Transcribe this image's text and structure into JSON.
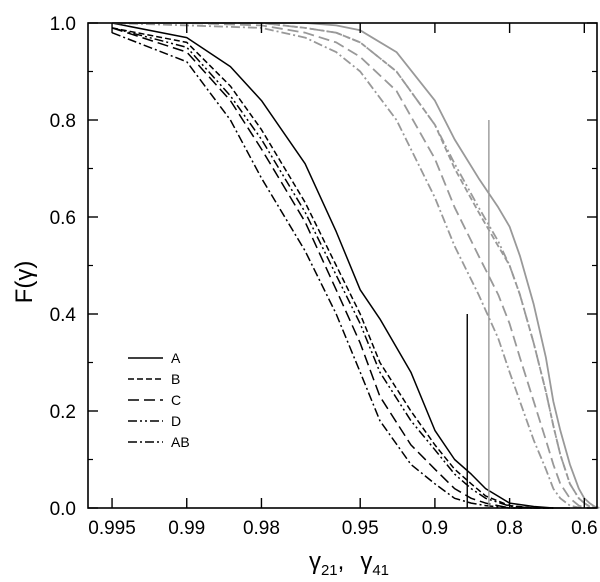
{
  "chart_data": {
    "type": "line",
    "title": "",
    "xlabel": {
      "sym1": "γ",
      "sub1": "21",
      "sep": ",",
      "sym2": "γ",
      "sub2": "41"
    },
    "ylabel": {
      "pre": "F(",
      "sym": "γ",
      "post": ")"
    },
    "x_scale": "nonlinear (-log(1-γ))",
    "x_ticks": [
      "0.995",
      "0.99",
      "0.98",
      "0.95",
      "0.9",
      "0.8",
      "0.6"
    ],
    "x_tick_values": [
      0.995,
      0.99,
      0.98,
      0.95,
      0.9,
      0.8,
      0.6
    ],
    "y_ticks": [
      "0.0",
      "0.2",
      "0.4",
      "0.6",
      "0.8",
      "1.0"
    ],
    "ylim": [
      0.0,
      1.0
    ],
    "grid": false,
    "legend": {
      "location": "lower-left",
      "entries": [
        "A",
        "B",
        "C",
        "D",
        "AB"
      ]
    },
    "colors": {
      "gamma21": "#000000",
      "gamma41": "#999999"
    },
    "series": [
      {
        "name": "A",
        "group": "gamma21",
        "dash": "solid",
        "x": [
          0.995,
          0.99,
          0.985,
          0.98,
          0.97,
          0.96,
          0.95,
          0.94,
          0.92,
          0.9,
          0.88,
          0.86,
          0.84,
          0.8,
          0.75,
          0.7,
          0.65
        ],
        "y": [
          1.0,
          0.97,
          0.91,
          0.84,
          0.71,
          0.57,
          0.45,
          0.39,
          0.28,
          0.16,
          0.1,
          0.07,
          0.04,
          0.01,
          0.003,
          0.0,
          0.0
        ]
      },
      {
        "name": "B",
        "group": "gamma21",
        "dash": "short-dash",
        "x": [
          0.995,
          0.99,
          0.985,
          0.98,
          0.97,
          0.96,
          0.95,
          0.94,
          0.92,
          0.9,
          0.88,
          0.86,
          0.84,
          0.8,
          0.75,
          0.7
        ],
        "y": [
          0.99,
          0.96,
          0.87,
          0.78,
          0.63,
          0.5,
          0.4,
          0.3,
          0.2,
          0.13,
          0.08,
          0.05,
          0.025,
          0.005,
          0.0,
          0.0
        ]
      },
      {
        "name": "C",
        "group": "gamma21",
        "dash": "long-dash",
        "x": [
          0.995,
          0.99,
          0.985,
          0.98,
          0.97,
          0.96,
          0.95,
          0.94,
          0.92,
          0.9,
          0.88,
          0.86,
          0.84,
          0.8,
          0.75,
          0.7
        ],
        "y": [
          0.99,
          0.94,
          0.84,
          0.74,
          0.59,
          0.45,
          0.34,
          0.23,
          0.13,
          0.08,
          0.04,
          0.02,
          0.01,
          0.0,
          0.0,
          0.0
        ]
      },
      {
        "name": "D",
        "group": "gamma21",
        "dash": "dash-dot-dot",
        "x": [
          0.995,
          0.99,
          0.985,
          0.98,
          0.97,
          0.96,
          0.95,
          0.94,
          0.92,
          0.9,
          0.88,
          0.86,
          0.84,
          0.8,
          0.75,
          0.7
        ],
        "y": [
          0.99,
          0.95,
          0.85,
          0.76,
          0.61,
          0.48,
          0.38,
          0.28,
          0.18,
          0.12,
          0.07,
          0.04,
          0.02,
          0.004,
          0.0,
          0.0
        ]
      },
      {
        "name": "AB",
        "group": "gamma21",
        "dash": "dash-dot",
        "x": [
          0.995,
          0.99,
          0.985,
          0.98,
          0.97,
          0.96,
          0.95,
          0.94,
          0.92,
          0.9,
          0.88,
          0.86,
          0.84,
          0.8,
          0.75,
          0.7
        ],
        "y": [
          0.98,
          0.92,
          0.8,
          0.68,
          0.53,
          0.4,
          0.28,
          0.18,
          0.09,
          0.05,
          0.02,
          0.01,
          0.005,
          0.0,
          0.0,
          0.0
        ]
      },
      {
        "name": "A",
        "group": "gamma41",
        "dash": "solid",
        "x": [
          0.995,
          0.99,
          0.98,
          0.97,
          0.96,
          0.95,
          0.93,
          0.9,
          0.88,
          0.85,
          0.82,
          0.8,
          0.78,
          0.75,
          0.72,
          0.7,
          0.68,
          0.65,
          0.62,
          0.6,
          0.58,
          0.56,
          0.54
        ],
        "y": [
          1.0,
          1.0,
          1.0,
          1.0,
          0.995,
          0.985,
          0.94,
          0.84,
          0.76,
          0.68,
          0.62,
          0.58,
          0.52,
          0.42,
          0.31,
          0.22,
          0.16,
          0.09,
          0.04,
          0.02,
          0.01,
          0.003,
          0.0
        ]
      },
      {
        "name": "B",
        "group": "gamma41",
        "dash": "short-dash",
        "x": [
          0.995,
          0.99,
          0.98,
          0.97,
          0.96,
          0.95,
          0.93,
          0.9,
          0.88,
          0.85,
          0.82,
          0.8,
          0.78,
          0.75,
          0.72,
          0.7,
          0.68,
          0.65,
          0.62,
          0.6,
          0.58,
          0.56
        ],
        "y": [
          1.0,
          1.0,
          1.0,
          0.99,
          0.98,
          0.96,
          0.9,
          0.79,
          0.7,
          0.61,
          0.54,
          0.5,
          0.44,
          0.34,
          0.24,
          0.17,
          0.11,
          0.05,
          0.02,
          0.01,
          0.003,
          0.0
        ]
      },
      {
        "name": "C",
        "group": "gamma41",
        "dash": "long-dash",
        "x": [
          0.995,
          0.99,
          0.98,
          0.97,
          0.96,
          0.95,
          0.93,
          0.9,
          0.88,
          0.85,
          0.82,
          0.8,
          0.78,
          0.75,
          0.72,
          0.7,
          0.68,
          0.65,
          0.62,
          0.6,
          0.58
        ],
        "y": [
          1.0,
          1.0,
          0.995,
          0.98,
          0.96,
          0.93,
          0.86,
          0.72,
          0.62,
          0.52,
          0.44,
          0.38,
          0.31,
          0.22,
          0.14,
          0.09,
          0.05,
          0.02,
          0.005,
          0.001,
          0.0
        ]
      },
      {
        "name": "D",
        "group": "gamma41",
        "dash": "dash-dot-dot",
        "x": [
          0.995,
          0.99,
          0.98,
          0.97,
          0.96,
          0.95,
          0.93,
          0.9,
          0.88,
          0.85,
          0.82,
          0.8,
          0.78,
          0.75,
          0.72,
          0.7,
          0.68,
          0.65,
          0.62,
          0.6,
          0.58,
          0.56
        ],
        "y": [
          1.0,
          1.0,
          1.0,
          0.99,
          0.98,
          0.96,
          0.9,
          0.79,
          0.71,
          0.62,
          0.55,
          0.5,
          0.44,
          0.34,
          0.24,
          0.17,
          0.11,
          0.05,
          0.02,
          0.01,
          0.003,
          0.0
        ]
      },
      {
        "name": "AB",
        "group": "gamma41",
        "dash": "dash-dot",
        "x": [
          0.995,
          0.99,
          0.98,
          0.97,
          0.96,
          0.95,
          0.93,
          0.9,
          0.88,
          0.85,
          0.82,
          0.8,
          0.78,
          0.75,
          0.72,
          0.7,
          0.68,
          0.65,
          0.62,
          0.6
        ],
        "y": [
          1.0,
          0.995,
          0.99,
          0.97,
          0.94,
          0.9,
          0.8,
          0.64,
          0.54,
          0.44,
          0.35,
          0.28,
          0.22,
          0.14,
          0.08,
          0.04,
          0.02,
          0.005,
          0.001,
          0.0
        ]
      }
    ],
    "markers": [
      {
        "group": "gamma21",
        "x": 0.865,
        "y_from": 0.0,
        "y_to": 0.4
      },
      {
        "group": "gamma41",
        "x": 0.835,
        "y_from": 0.0,
        "y_to": 0.8
      }
    ]
  }
}
